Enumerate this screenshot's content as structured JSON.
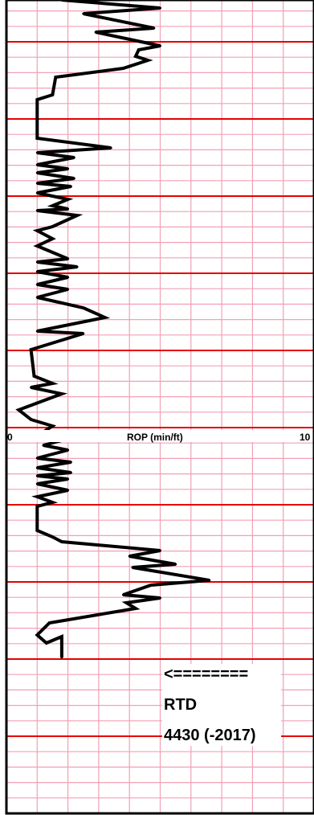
{
  "chart_data": {
    "type": "line",
    "title": "",
    "xlabel": "ROP (min/ft)",
    "ylabel": "",
    "xlim": [
      0,
      10
    ],
    "grid": true,
    "colors": {
      "minor_grid": "#f2a0b4",
      "major_grid": "#e60000",
      "trace": "#000000",
      "frame": "#000000",
      "label_background": "#ffffff"
    },
    "tick_labels": {
      "left": "0",
      "right": "10"
    },
    "series": [
      {
        "values": [
          [
            1.8,
            0
          ],
          [
            5.0,
            10
          ],
          [
            2.5,
            17
          ],
          [
            4.8,
            35
          ],
          [
            2.9,
            40
          ],
          [
            5.0,
            57
          ],
          [
            4.3,
            62
          ],
          [
            4.2,
            70
          ],
          [
            4.6,
            75
          ],
          [
            3.8,
            85
          ],
          [
            1.6,
            96
          ],
          [
            1.5,
            118
          ],
          [
            1.0,
            124
          ],
          [
            1.0,
            172
          ],
          [
            3.4,
            184
          ],
          [
            1.0,
            190
          ],
          [
            2.2,
            196
          ],
          [
            1.0,
            205
          ],
          [
            2.0,
            210
          ],
          [
            1.0,
            215
          ],
          [
            2.2,
            222
          ],
          [
            1.0,
            228
          ],
          [
            2.1,
            232
          ],
          [
            1.0,
            240
          ],
          [
            2.0,
            248
          ],
          [
            1.5,
            256
          ],
          [
            2.0,
            260
          ],
          [
            1.0,
            262
          ],
          [
            2.3,
            268
          ],
          [
            1.5,
            282
          ],
          [
            1.0,
            287
          ],
          [
            1.5,
            297
          ],
          [
            1.0,
            306
          ],
          [
            2.0,
            322
          ],
          [
            1.0,
            326
          ],
          [
            2.3,
            332
          ],
          [
            1.0,
            338
          ],
          [
            2.0,
            345
          ],
          [
            1.0,
            354
          ],
          [
            2.0,
            360
          ],
          [
            1.0,
            370
          ],
          [
            2.5,
            383
          ],
          [
            3.2,
            395
          ],
          [
            1.0,
            412
          ],
          [
            2.5,
            415
          ],
          [
            0.8,
            435
          ],
          [
            0.9,
            468
          ],
          [
            1.5,
            477
          ],
          [
            0.8,
            482
          ],
          [
            1.8,
            490
          ],
          [
            0.4,
            510
          ],
          [
            0.8,
            522
          ],
          [
            1.5,
            530
          ],
          [
            1.1,
            540
          ],
          [
            2.1,
            545
          ],
          [
            1.2,
            554
          ],
          [
            2.0,
            560
          ],
          [
            1.0,
            570
          ],
          [
            2.1,
            575
          ],
          [
            1.0,
            582
          ],
          [
            2.1,
            588
          ],
          [
            1.0,
            592
          ],
          [
            2.0,
            596
          ],
          [
            1.0,
            602
          ],
          [
            2.0,
            610
          ],
          [
            1.0,
            618
          ],
          [
            1.5,
            625
          ],
          [
            1.0,
            630
          ],
          [
            1.0,
            660
          ],
          [
            1.5,
            668
          ],
          [
            1.8,
            674
          ],
          [
            5.0,
            685
          ],
          [
            4.0,
            692
          ],
          [
            5.5,
            702
          ],
          [
            4.1,
            706
          ],
          [
            6.6,
            722
          ],
          [
            4.7,
            728
          ],
          [
            3.8,
            740
          ],
          [
            5.0,
            744
          ],
          [
            3.9,
            750
          ],
          [
            4.2,
            757
          ],
          [
            1.4,
            775
          ],
          [
            1.0,
            790
          ],
          [
            1.3,
            800
          ],
          [
            1.8,
            792
          ],
          [
            1.8,
            818
          ]
        ]
      }
    ],
    "annotations": [
      {
        "text": "<========"
      },
      {
        "text": "RTD"
      },
      {
        "text": "4430 (-2017)"
      }
    ]
  }
}
